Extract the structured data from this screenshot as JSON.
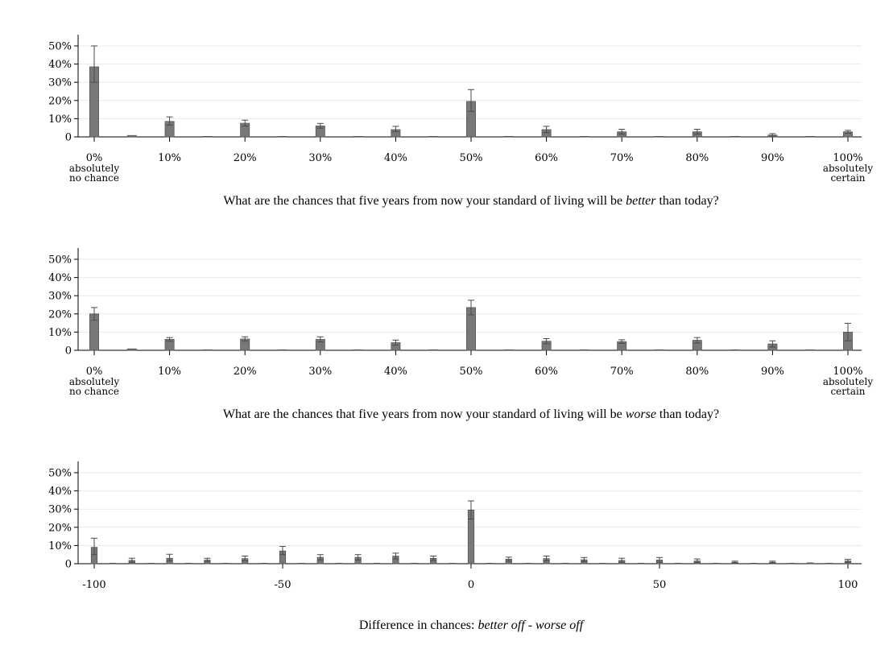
{
  "chart_data": [
    {
      "type": "bar",
      "title": "",
      "xlabel": "What are the chances that five years from now your standard of living will be better than today?",
      "xlabel_parts": [
        "What are the chances that five years from now your standard of living will be ",
        "better",
        " than today?"
      ],
      "ylabel": "",
      "ylim": [
        0,
        55
      ],
      "y_ticks": [
        0,
        10,
        20,
        30,
        40,
        50
      ],
      "y_tick_labels": [
        "0",
        "10%",
        "20%",
        "30%",
        "40%",
        "50%"
      ],
      "xlim": [
        -2,
        102
      ],
      "x_ticks": [
        0,
        10,
        20,
        30,
        40,
        50,
        60,
        70,
        80,
        90,
        100
      ],
      "x_tick_labels": [
        "0%",
        "10%",
        "20%",
        "30%",
        "40%",
        "50%",
        "60%",
        "70%",
        "80%",
        "90%",
        "100%"
      ],
      "x_sublabels": [
        {
          "x": 0,
          "lines": [
            "absolutely",
            "no chance"
          ]
        },
        {
          "x": 100,
          "lines": [
            "absolutely",
            "certain"
          ]
        }
      ],
      "bar_width": 1.2,
      "x": [
        0,
        5,
        10,
        15,
        20,
        25,
        30,
        35,
        40,
        45,
        50,
        55,
        60,
        65,
        70,
        75,
        80,
        85,
        90,
        95,
        100
      ],
      "values": [
        38.5,
        0.8,
        8.5,
        0.3,
        7.5,
        0.3,
        6.0,
        0.3,
        4.0,
        0.3,
        19.5,
        0.3,
        4.0,
        0.3,
        2.8,
        0.3,
        2.8,
        0.3,
        1.0,
        0.3,
        2.8
      ],
      "err_high": [
        50,
        1.2,
        11,
        0.6,
        9.2,
        0.6,
        7.4,
        0.6,
        5.8,
        0.6,
        26,
        0.6,
        5.8,
        0.6,
        4.2,
        0.6,
        4.2,
        0.6,
        1.8,
        0.6,
        3.6
      ],
      "err_low": [
        30,
        0.4,
        6.5,
        0.1,
        6.0,
        0.1,
        4.8,
        0.1,
        2.8,
        0.1,
        14,
        0.1,
        2.4,
        0.1,
        1.6,
        0.1,
        1.6,
        0.1,
        0.4,
        0.1,
        2.0
      ]
    },
    {
      "type": "bar",
      "title": "",
      "xlabel": "What are the chances that five years from now your standard of living will be worse than today?",
      "xlabel_parts": [
        "What are the chances that five years from now your standard of living will be ",
        "worse",
        " than today?"
      ],
      "ylabel": "",
      "ylim": [
        0,
        55
      ],
      "y_ticks": [
        0,
        10,
        20,
        30,
        40,
        50
      ],
      "y_tick_labels": [
        "0",
        "10%",
        "20%",
        "30%",
        "40%",
        "50%"
      ],
      "xlim": [
        -2,
        102
      ],
      "x_ticks": [
        0,
        10,
        20,
        30,
        40,
        50,
        60,
        70,
        80,
        90,
        100
      ],
      "x_tick_labels": [
        "0%",
        "10%",
        "20%",
        "30%",
        "40%",
        "50%",
        "60%",
        "70%",
        "80%",
        "90%",
        "100%"
      ],
      "x_sublabels": [
        {
          "x": 0,
          "lines": [
            "absolutely",
            "no chance"
          ]
        },
        {
          "x": 100,
          "lines": [
            "absolutely",
            "certain"
          ]
        }
      ],
      "bar_width": 1.2,
      "x": [
        0,
        5,
        10,
        15,
        20,
        25,
        30,
        35,
        40,
        45,
        50,
        55,
        60,
        65,
        70,
        75,
        80,
        85,
        90,
        95,
        100
      ],
      "values": [
        20.0,
        0.8,
        6.0,
        0.3,
        6.2,
        0.3,
        6.0,
        0.3,
        4.2,
        0.3,
        23.5,
        0.3,
        5.0,
        0.3,
        4.8,
        0.3,
        5.5,
        0.3,
        3.5,
        0.3,
        10.0
      ],
      "err_high": [
        23.5,
        1.2,
        7.0,
        0.6,
        7.4,
        0.6,
        7.4,
        0.6,
        5.6,
        0.6,
        27.5,
        0.6,
        6.4,
        0.6,
        5.8,
        0.6,
        7.0,
        0.6,
        5.2,
        0.6,
        14.8
      ],
      "err_low": [
        16.5,
        0.4,
        5.0,
        0.1,
        5.0,
        0.1,
        4.6,
        0.1,
        2.8,
        0.1,
        19.5,
        0.1,
        3.6,
        0.1,
        3.8,
        0.1,
        4.0,
        0.1,
        1.8,
        0.1,
        5.2
      ]
    },
    {
      "type": "bar",
      "title": "",
      "xlabel": "Difference in chances: better off - worse off",
      "xlabel_parts": [
        "Difference in chances: ",
        "better off",
        " - ",
        "worse off"
      ],
      "ylabel": "",
      "ylim": [
        0,
        55
      ],
      "y_ticks": [
        0,
        10,
        20,
        30,
        40,
        50
      ],
      "y_tick_labels": [
        "0",
        "10%",
        "20%",
        "30%",
        "40%",
        "50%"
      ],
      "xlim": [
        -104,
        104
      ],
      "x_ticks": [
        -100,
        -50,
        0,
        50,
        100
      ],
      "x_tick_labels": [
        "-100",
        "-50",
        "0",
        "50",
        "100"
      ],
      "x_sublabels": [],
      "bar_width": 1.6,
      "x": [
        -100,
        -95,
        -90,
        -85,
        -80,
        -75,
        -70,
        -65,
        -60,
        -55,
        -50,
        -45,
        -40,
        -35,
        -30,
        -25,
        -20,
        -15,
        -10,
        -5,
        0,
        5,
        10,
        15,
        20,
        25,
        30,
        35,
        40,
        45,
        50,
        55,
        60,
        65,
        70,
        75,
        80,
        85,
        90,
        95,
        100
      ],
      "values": [
        9.0,
        0.3,
        1.8,
        0.3,
        3.0,
        0.3,
        2.0,
        0.3,
        2.8,
        0.3,
        7.0,
        0.3,
        3.5,
        0.3,
        3.5,
        0.3,
        4.2,
        0.3,
        3.0,
        0.3,
        29.5,
        0.3,
        2.5,
        0.3,
        2.8,
        0.3,
        2.2,
        0.3,
        1.8,
        0.3,
        2.0,
        0.3,
        1.5,
        0.3,
        0.8,
        0.3,
        0.8,
        0.3,
        0.5,
        0.3,
        1.5
      ],
      "err_high": [
        14.0,
        0.6,
        3.0,
        0.6,
        5.2,
        0.6,
        3.0,
        0.6,
        4.2,
        0.6,
        9.5,
        0.6,
        5.0,
        0.6,
        5.0,
        0.6,
        5.8,
        0.6,
        4.2,
        0.6,
        34.5,
        0.6,
        3.6,
        0.6,
        4.2,
        0.6,
        3.4,
        0.6,
        3.0,
        0.6,
        3.4,
        0.6,
        2.6,
        0.6,
        1.4,
        0.6,
        1.4,
        0.6,
        0.9,
        0.6,
        2.4
      ],
      "err_low": [
        5.0,
        0.1,
        0.8,
        0.1,
        1.6,
        0.1,
        1.2,
        0.1,
        1.6,
        0.1,
        5.0,
        0.1,
        2.0,
        0.1,
        2.0,
        0.1,
        2.6,
        0.1,
        1.8,
        0.1,
        24.5,
        0.1,
        1.4,
        0.1,
        1.6,
        0.1,
        1.2,
        0.1,
        0.8,
        0.1,
        0.8,
        0.1,
        0.6,
        0.1,
        0.3,
        0.1,
        0.3,
        0.1,
        0.2,
        0.1,
        0.8
      ]
    }
  ]
}
